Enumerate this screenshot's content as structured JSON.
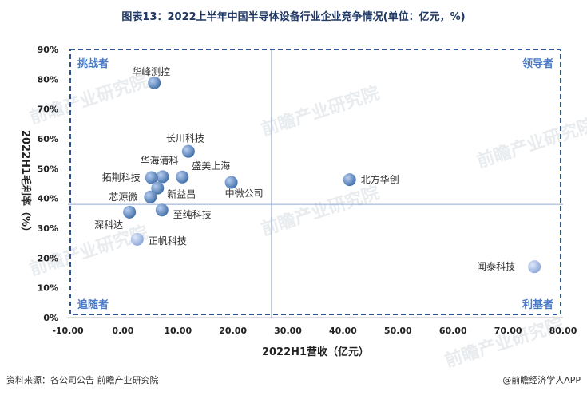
{
  "title": "图表13：2022上半年中国半导体设备行业企业竞争情况(单位：亿元，%)",
  "footer": {
    "source": "资料来源：各公司公告 前瞻产业研究院",
    "brand": "@前瞻经济学人APP"
  },
  "watermark": "前瞻产业研究院",
  "chart_data": {
    "type": "scatter",
    "title": "图表13：2022上半年中国半导体设备行业企业竞争情况(单位：亿元，%)",
    "xlabel": "2022H1营收（亿元）",
    "ylabel": "2022H1毛利率（%）",
    "xlim": [
      -10,
      80
    ],
    "ylim": [
      0,
      90
    ],
    "x_ticks": [
      "-10.00",
      "0.00",
      "10.00",
      "20.00",
      "30.00",
      "40.00",
      "50.00",
      "60.00",
      "70.00",
      "80.00"
    ],
    "y_ticks": [
      "0%",
      "10%",
      "20%",
      "30%",
      "40%",
      "50%",
      "60%",
      "70%",
      "80%",
      "90%"
    ],
    "divider_x": 27,
    "divider_y": 38,
    "quadrants": {
      "top_left": "挑战者",
      "top_right": "领导者",
      "bottom_left": "追随者",
      "bottom_right": "利基者"
    },
    "points": [
      {
        "name": "华峰测控",
        "x": 5.7,
        "y": 78.8
      },
      {
        "name": "长川科技",
        "x": 11.9,
        "y": 55.8
      },
      {
        "name": "华海清科",
        "x": 7.2,
        "y": 47.3
      },
      {
        "name": "拓荆科技",
        "x": 5.2,
        "y": 47.0
      },
      {
        "name": "盛美上海",
        "x": 10.8,
        "y": 47.2
      },
      {
        "name": "中微公司",
        "x": 19.7,
        "y": 45.4
      },
      {
        "name": "北方华创",
        "x": 41.2,
        "y": 46.3
      },
      {
        "name": "新益昌",
        "x": 6.3,
        "y": 43.5
      },
      {
        "name": "芯源微",
        "x": 5.0,
        "y": 40.5
      },
      {
        "name": "至纯科技",
        "x": 7.1,
        "y": 36.1
      },
      {
        "name": "深科达",
        "x": 1.2,
        "y": 35.4
      },
      {
        "name": "正帆科技",
        "x": 2.6,
        "y": 26.3
      },
      {
        "name": "闻泰科技",
        "x": 74.8,
        "y": 17.1
      }
    ],
    "colors": {
      "point_dark": "#3f6ea8",
      "point_light": "#9db6e4",
      "quadrant_label": "#4a7bc8",
      "frame": "#2f5597",
      "axis_text": "#222222"
    }
  }
}
